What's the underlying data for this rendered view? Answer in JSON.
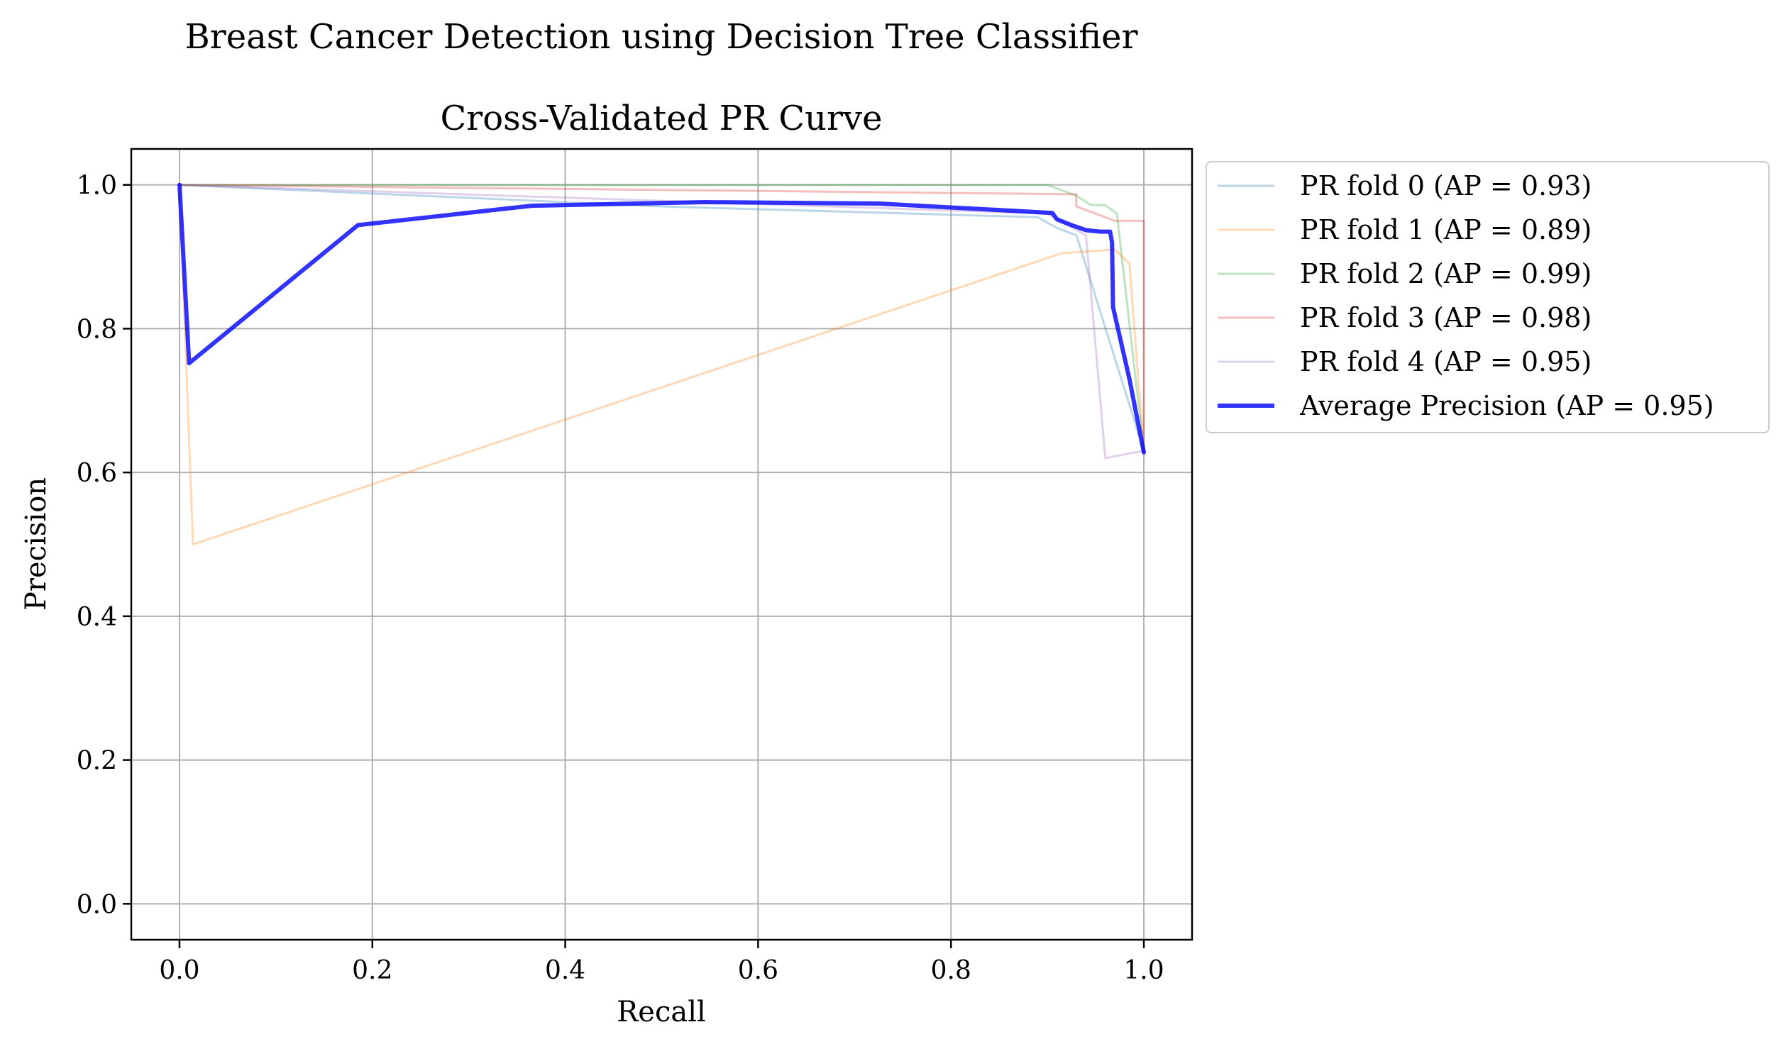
{
  "chart_data": {
    "type": "line",
    "suptitle": "Breast Cancer Detection using Decision Tree Classifier",
    "title": "Cross-Validated PR Curve",
    "xlabel": "Recall",
    "ylabel": "Precision",
    "xlim": [
      -0.05,
      1.05
    ],
    "ylim": [
      -0.05,
      1.05
    ],
    "xticks": [
      0.0,
      0.2,
      0.4,
      0.6,
      0.8,
      1.0
    ],
    "yticks": [
      0.0,
      0.2,
      0.4,
      0.6,
      0.8,
      1.0
    ],
    "xtick_labels": [
      "0.0",
      "0.2",
      "0.4",
      "0.6",
      "0.8",
      "1.0"
    ],
    "ytick_labels": [
      "0.0",
      "0.2",
      "0.4",
      "0.6",
      "0.8",
      "1.0"
    ],
    "grid": true,
    "legend_position": "outside-right-top",
    "series": [
      {
        "name": "PR fold 0 (AP = 0.93)",
        "color": "#1f77b4",
        "opacity": 0.3,
        "points": [
          [
            0.0,
            1.0
          ],
          [
            0.5,
            0.97
          ],
          [
            0.89,
            0.955
          ],
          [
            0.91,
            0.94
          ],
          [
            0.93,
            0.93
          ],
          [
            1.0,
            0.63
          ]
        ]
      },
      {
        "name": "PR fold 1 (AP = 0.89)",
        "color": "#ff7f0e",
        "opacity": 0.3,
        "points": [
          [
            0.0,
            1.0
          ],
          [
            0.014,
            0.5
          ],
          [
            0.915,
            0.905
          ],
          [
            0.97,
            0.91
          ],
          [
            0.985,
            0.89
          ],
          [
            1.0,
            0.63
          ]
        ]
      },
      {
        "name": "PR fold 2 (AP = 0.99)",
        "color": "#2ca02c",
        "opacity": 0.3,
        "points": [
          [
            0.0,
            1.0
          ],
          [
            0.9,
            1.0
          ],
          [
            0.93,
            0.985
          ],
          [
            0.945,
            0.972
          ],
          [
            0.96,
            0.972
          ],
          [
            0.972,
            0.96
          ],
          [
            1.0,
            0.63
          ]
        ]
      },
      {
        "name": "PR fold 3 (AP = 0.98)",
        "color": "#d62728",
        "opacity": 0.3,
        "points": [
          [
            0.0,
            1.0
          ],
          [
            0.93,
            0.987
          ],
          [
            0.93,
            0.97
          ],
          [
            0.97,
            0.95
          ],
          [
            0.985,
            0.95
          ],
          [
            1.0,
            0.95
          ],
          [
            1.0,
            0.63
          ]
        ]
      },
      {
        "name": "PR fold 4 (AP = 0.95)",
        "color": "#9467bd",
        "opacity": 0.3,
        "points": [
          [
            0.0,
            1.0
          ],
          [
            0.9,
            0.96
          ],
          [
            0.94,
            0.93
          ],
          [
            0.96,
            0.62
          ],
          [
            1.0,
            0.63
          ]
        ]
      },
      {
        "name": "Average Precision (AP = 0.95)",
        "color": "#0000ff",
        "opacity": 0.8,
        "bold": true,
        "points": [
          [
            0.0,
            1.0
          ],
          [
            0.01,
            0.752
          ],
          [
            0.185,
            0.944
          ],
          [
            0.365,
            0.971
          ],
          [
            0.545,
            0.976
          ],
          [
            0.725,
            0.974
          ],
          [
            0.905,
            0.961
          ],
          [
            0.91,
            0.952
          ],
          [
            0.925,
            0.944
          ],
          [
            0.94,
            0.937
          ],
          [
            0.955,
            0.935
          ],
          [
            0.965,
            0.935
          ],
          [
            0.967,
            0.92
          ],
          [
            0.968,
            0.83
          ],
          [
            0.985,
            0.73
          ],
          [
            1.0,
            0.628
          ]
        ]
      }
    ]
  }
}
